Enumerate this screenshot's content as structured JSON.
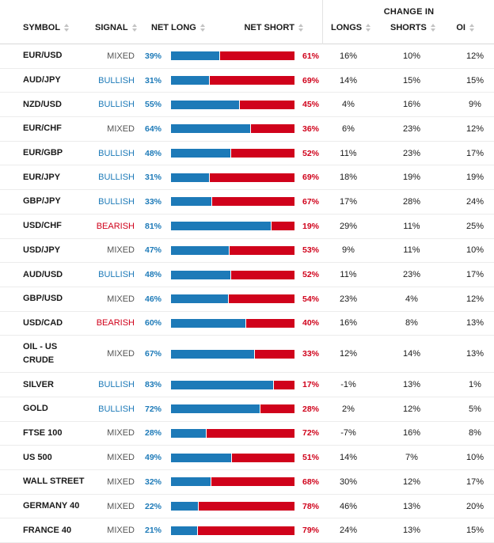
{
  "header": {
    "change_in": "CHANGE IN",
    "symbol": "SYMBOL",
    "signal": "SIGNAL",
    "net_long": "NET LONG",
    "net_short": "NET SHORT",
    "longs": "LONGS",
    "shorts": "SHORTS",
    "oi": "OI"
  },
  "colors": {
    "long": "#1d7ab8",
    "short": "#d0021b",
    "mixed": "#555555"
  },
  "rows": [
    {
      "symbol": "EUR/USD",
      "signal": "MIXED",
      "net_long": "39%",
      "net_short": "61%",
      "longs": "16%",
      "shorts": "10%",
      "oi": "12%",
      "long_pct": 39
    },
    {
      "symbol": "AUD/JPY",
      "signal": "BULLISH",
      "net_long": "31%",
      "net_short": "69%",
      "longs": "14%",
      "shorts": "15%",
      "oi": "15%",
      "long_pct": 31
    },
    {
      "symbol": "NZD/USD",
      "signal": "BULLISH",
      "net_long": "55%",
      "net_short": "45%",
      "longs": "4%",
      "shorts": "16%",
      "oi": "9%",
      "long_pct": 55
    },
    {
      "symbol": "EUR/CHF",
      "signal": "MIXED",
      "net_long": "64%",
      "net_short": "36%",
      "longs": "6%",
      "shorts": "23%",
      "oi": "12%",
      "long_pct": 64
    },
    {
      "symbol": "EUR/GBP",
      "signal": "BULLISH",
      "net_long": "48%",
      "net_short": "52%",
      "longs": "11%",
      "shorts": "23%",
      "oi": "17%",
      "long_pct": 48
    },
    {
      "symbol": "EUR/JPY",
      "signal": "BULLISH",
      "net_long": "31%",
      "net_short": "69%",
      "longs": "18%",
      "shorts": "19%",
      "oi": "19%",
      "long_pct": 31
    },
    {
      "symbol": "GBP/JPY",
      "signal": "BULLISH",
      "net_long": "33%",
      "net_short": "67%",
      "longs": "17%",
      "shorts": "28%",
      "oi": "24%",
      "long_pct": 33
    },
    {
      "symbol": "USD/CHF",
      "signal": "BEARISH",
      "net_long": "81%",
      "net_short": "19%",
      "longs": "29%",
      "shorts": "11%",
      "oi": "25%",
      "long_pct": 81
    },
    {
      "symbol": "USD/JPY",
      "signal": "MIXED",
      "net_long": "47%",
      "net_short": "53%",
      "longs": "9%",
      "shorts": "11%",
      "oi": "10%",
      "long_pct": 47
    },
    {
      "symbol": "AUD/USD",
      "signal": "BULLISH",
      "net_long": "48%",
      "net_short": "52%",
      "longs": "11%",
      "shorts": "23%",
      "oi": "17%",
      "long_pct": 48
    },
    {
      "symbol": "GBP/USD",
      "signal": "MIXED",
      "net_long": "46%",
      "net_short": "54%",
      "longs": "23%",
      "shorts": "4%",
      "oi": "12%",
      "long_pct": 46
    },
    {
      "symbol": "USD/CAD",
      "signal": "BEARISH",
      "net_long": "60%",
      "net_short": "40%",
      "longs": "16%",
      "shorts": "8%",
      "oi": "13%",
      "long_pct": 60
    },
    {
      "symbol": "OIL - US CRUDE",
      "signal": "MIXED",
      "net_long": "67%",
      "net_short": "33%",
      "longs": "12%",
      "shorts": "14%",
      "oi": "13%",
      "long_pct": 67
    },
    {
      "symbol": "SILVER",
      "signal": "BULLISH",
      "net_long": "83%",
      "net_short": "17%",
      "longs": "-1%",
      "shorts": "13%",
      "oi": "1%",
      "long_pct": 83
    },
    {
      "symbol": "GOLD",
      "signal": "BULLISH",
      "net_long": "72%",
      "net_short": "28%",
      "longs": "2%",
      "shorts": "12%",
      "oi": "5%",
      "long_pct": 72
    },
    {
      "symbol": "FTSE 100",
      "signal": "MIXED",
      "net_long": "28%",
      "net_short": "72%",
      "longs": "-7%",
      "shorts": "16%",
      "oi": "8%",
      "long_pct": 28
    },
    {
      "symbol": "US 500",
      "signal": "MIXED",
      "net_long": "49%",
      "net_short": "51%",
      "longs": "14%",
      "shorts": "7%",
      "oi": "10%",
      "long_pct": 49
    },
    {
      "symbol": "WALL STREET",
      "signal": "MIXED",
      "net_long": "32%",
      "net_short": "68%",
      "longs": "30%",
      "shorts": "12%",
      "oi": "17%",
      "long_pct": 32
    },
    {
      "symbol": "GERMANY 40",
      "signal": "MIXED",
      "net_long": "22%",
      "net_short": "78%",
      "longs": "46%",
      "shorts": "13%",
      "oi": "20%",
      "long_pct": 22
    },
    {
      "symbol": "FRANCE 40",
      "signal": "MIXED",
      "net_long": "21%",
      "net_short": "79%",
      "longs": "24%",
      "shorts": "13%",
      "oi": "15%",
      "long_pct": 21
    }
  ]
}
